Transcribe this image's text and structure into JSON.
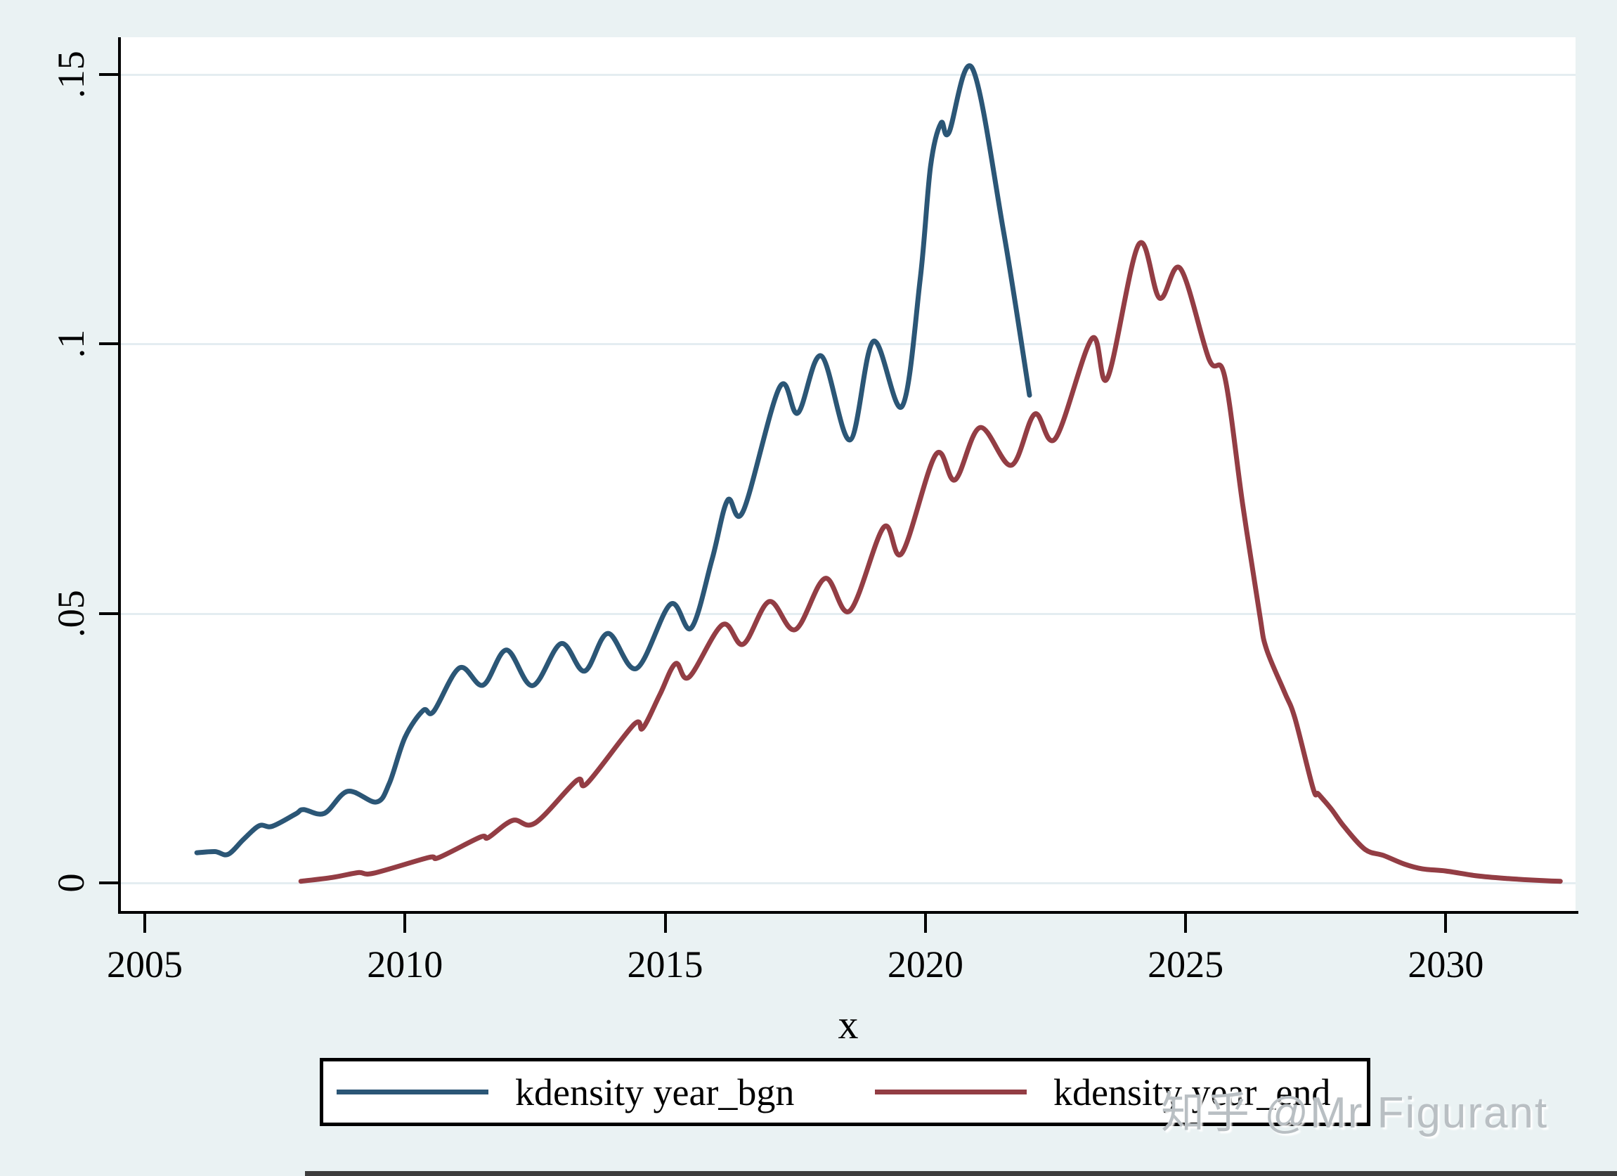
{
  "page": {
    "background": "#eaf2f3",
    "plot_background": "#ffffff",
    "grid_color": "#e4edf1",
    "axis_color": "#000000"
  },
  "watermark": {
    "text": "知乎 @Mr Figurant",
    "color": "#b9bfc3"
  },
  "legend": {
    "position": "bottom",
    "entries": [
      {
        "label": "kdensity year_bgn",
        "color": "#2b5676"
      },
      {
        "label": "kdensity year_end",
        "color": "#933d44"
      }
    ]
  },
  "chart_data": {
    "type": "line",
    "title": "",
    "xlabel": "x",
    "ylabel": "",
    "xlim": [
      2004.54,
      2032.5
    ],
    "ylim": [
      0,
      0.1565
    ],
    "grid": "horizontal",
    "legend_position": "bottom",
    "x_ticks": [
      "2005",
      "2010",
      "2015",
      "2020",
      "2025",
      "2030"
    ],
    "x_tick_values": [
      2005,
      2010,
      2015,
      2020,
      2025,
      2030
    ],
    "y_ticks": [
      "0",
      ".05",
      ".1",
      ".15"
    ],
    "y_tick_values": [
      0,
      0.05,
      0.1,
      0.15
    ],
    "series": [
      {
        "name": "kdensity year_bgn",
        "color": "#2b5676",
        "points": [
          [
            2006.0,
            0.0056
          ],
          [
            2006.35,
            0.0058
          ],
          [
            2006.6,
            0.0053
          ],
          [
            2006.9,
            0.0081
          ],
          [
            2007.2,
            0.0106
          ],
          [
            2007.45,
            0.0105
          ],
          [
            2007.9,
            0.0128
          ],
          [
            2008.05,
            0.0136
          ],
          [
            2008.45,
            0.0129
          ],
          [
            2008.9,
            0.017
          ],
          [
            2009.45,
            0.015
          ],
          [
            2009.7,
            0.0185
          ],
          [
            2010.0,
            0.027
          ],
          [
            2010.35,
            0.032
          ],
          [
            2010.55,
            0.0318
          ],
          [
            2011.05,
            0.0399
          ],
          [
            2011.5,
            0.0367
          ],
          [
            2011.95,
            0.0432
          ],
          [
            2012.45,
            0.0366
          ],
          [
            2013.0,
            0.0444
          ],
          [
            2013.45,
            0.0393
          ],
          [
            2013.9,
            0.0463
          ],
          [
            2014.45,
            0.0398
          ],
          [
            2015.1,
            0.0517
          ],
          [
            2015.5,
            0.0473
          ],
          [
            2015.9,
            0.06
          ],
          [
            2016.2,
            0.071
          ],
          [
            2016.5,
            0.069
          ],
          [
            2017.2,
            0.092
          ],
          [
            2017.55,
            0.0872
          ],
          [
            2018.0,
            0.0978
          ],
          [
            2018.55,
            0.0822
          ],
          [
            2019.0,
            0.1005
          ],
          [
            2019.55,
            0.0884
          ],
          [
            2019.9,
            0.112
          ],
          [
            2020.1,
            0.133
          ],
          [
            2020.3,
            0.141
          ],
          [
            2020.45,
            0.1392
          ],
          [
            2020.9,
            0.1512
          ],
          [
            2021.5,
            0.121
          ],
          [
            2022.0,
            0.0905
          ]
        ]
      },
      {
        "name": "kdensity year_end",
        "color": "#933d44",
        "points": [
          [
            2008.0,
            0.0003
          ],
          [
            2008.6,
            0.001
          ],
          [
            2009.1,
            0.0019
          ],
          [
            2009.4,
            0.0018
          ],
          [
            2010.45,
            0.0047
          ],
          [
            2010.65,
            0.0047
          ],
          [
            2011.45,
            0.0085
          ],
          [
            2011.6,
            0.0084
          ],
          [
            2012.07,
            0.0116
          ],
          [
            2012.5,
            0.0111
          ],
          [
            2013.3,
            0.019
          ],
          [
            2013.5,
            0.0185
          ],
          [
            2014.4,
            0.0294
          ],
          [
            2014.57,
            0.0287
          ],
          [
            2014.9,
            0.035
          ],
          [
            2015.2,
            0.0407
          ],
          [
            2015.46,
            0.0382
          ],
          [
            2016.1,
            0.0479
          ],
          [
            2016.5,
            0.0443
          ],
          [
            2017.0,
            0.0522
          ],
          [
            2017.5,
            0.047
          ],
          [
            2018.07,
            0.0565
          ],
          [
            2018.55,
            0.0505
          ],
          [
            2019.2,
            0.066
          ],
          [
            2019.55,
            0.0612
          ],
          [
            2020.2,
            0.0795
          ],
          [
            2020.57,
            0.0748
          ],
          [
            2021.05,
            0.0845
          ],
          [
            2021.65,
            0.0775
          ],
          [
            2022.1,
            0.087
          ],
          [
            2022.5,
            0.0825
          ],
          [
            2023.2,
            0.101
          ],
          [
            2023.5,
            0.0937
          ],
          [
            2024.1,
            0.1185
          ],
          [
            2024.5,
            0.1085
          ],
          [
            2024.9,
            0.114
          ],
          [
            2025.45,
            0.0972
          ],
          [
            2025.75,
            0.094
          ],
          [
            2026.1,
            0.07
          ],
          [
            2026.42,
            0.05
          ],
          [
            2026.55,
            0.0435
          ],
          [
            2026.9,
            0.0354
          ],
          [
            2027.1,
            0.0306
          ],
          [
            2027.45,
            0.0175
          ],
          [
            2027.55,
            0.0165
          ],
          [
            2027.8,
            0.0137
          ],
          [
            2028.05,
            0.0104
          ],
          [
            2028.45,
            0.0062
          ],
          [
            2028.8,
            0.0051
          ],
          [
            2029.2,
            0.0035
          ],
          [
            2029.55,
            0.0026
          ],
          [
            2030.0,
            0.0022
          ],
          [
            2030.6,
            0.0013
          ],
          [
            2031.2,
            0.0008
          ],
          [
            2031.9,
            0.0004
          ],
          [
            2032.2,
            0.0003
          ]
        ]
      }
    ]
  }
}
